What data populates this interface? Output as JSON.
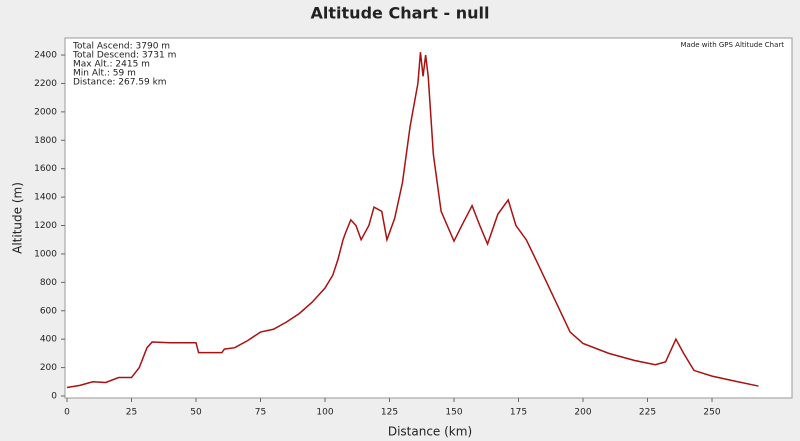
{
  "chart_data": {
    "type": "line",
    "title": "Altitude Chart - null",
    "x_label": "Distance (km)",
    "y_label": "Altitude (m)",
    "annotations": [
      "Total Ascend: 3790 m",
      "Total Descend: 3731 m",
      "Max Alt.: 2415 m",
      "Min Alt.: 59 m",
      "Distance: 267.59 km"
    ],
    "credit": "Made with GPS Altitude Chart",
    "x": [
      0,
      5,
      10,
      15,
      20,
      25,
      28,
      31,
      33,
      40,
      45,
      50,
      51,
      60,
      61,
      65,
      70,
      75,
      80,
      85,
      90,
      95,
      100,
      103,
      105,
      107,
      108,
      110,
      112,
      114,
      117,
      119,
      122,
      124,
      127,
      130,
      133,
      136,
      137,
      138,
      139,
      140,
      142,
      145,
      150,
      153,
      157,
      160,
      163,
      167,
      171,
      174,
      178,
      182,
      195,
      200,
      210,
      220,
      228,
      232,
      236,
      239,
      243,
      250,
      260,
      268
    ],
    "series": [
      {
        "name": "Altitude",
        "color": "#aa1111",
        "values": [
          60,
          75,
          100,
          95,
          130,
          130,
          200,
          340,
          380,
          375,
          375,
          375,
          305,
          305,
          330,
          340,
          390,
          450,
          470,
          520,
          580,
          660,
          760,
          850,
          960,
          1100,
          1150,
          1240,
          1200,
          1100,
          1200,
          1330,
          1300,
          1100,
          1250,
          1500,
          1900,
          2200,
          2420,
          2250,
          2400,
          2250,
          1700,
          1300,
          1090,
          1200,
          1340,
          1200,
          1070,
          1280,
          1380,
          1200,
          1100,
          950,
          450,
          370,
          300,
          250,
          220,
          240,
          400,
          300,
          180,
          140,
          100,
          70
        ]
      }
    ],
    "xlim": [
      0,
      281
    ],
    "ylim": [
      0,
      2520
    ],
    "xticks": [
      0,
      25,
      50,
      75,
      100,
      125,
      150,
      175,
      200,
      225,
      250
    ],
    "yticks": [
      0,
      200,
      400,
      600,
      800,
      1000,
      1200,
      1400,
      1600,
      1800,
      2000,
      2200,
      2400
    ],
    "grid": false
  }
}
